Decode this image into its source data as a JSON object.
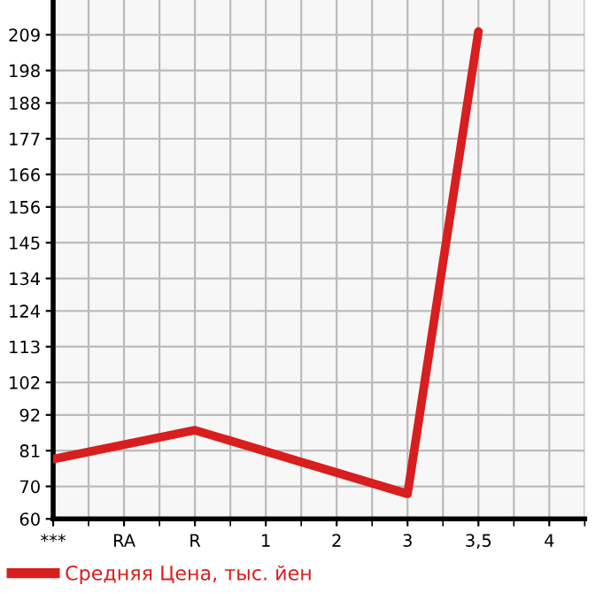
{
  "chart_data": {
    "type": "line",
    "categories": [
      "***",
      "RA",
      "R",
      "1",
      "2",
      "3",
      "3,5",
      "4"
    ],
    "series": [
      {
        "name": "Средняя Цена, тыс. йен",
        "color": "#d81e1e",
        "values": [
          78.4,
          null,
          87.3,
          null,
          null,
          67.7,
          210,
          null
        ]
      }
    ],
    "ylim": [
      60,
      219.7
    ],
    "yticks": [
      60,
      70,
      81,
      92,
      102,
      113,
      124,
      134,
      145,
      156,
      166,
      177,
      188,
      198,
      209
    ],
    "grid": true,
    "legend": "bottom left",
    "marker": "none",
    "line_style": "solid"
  }
}
